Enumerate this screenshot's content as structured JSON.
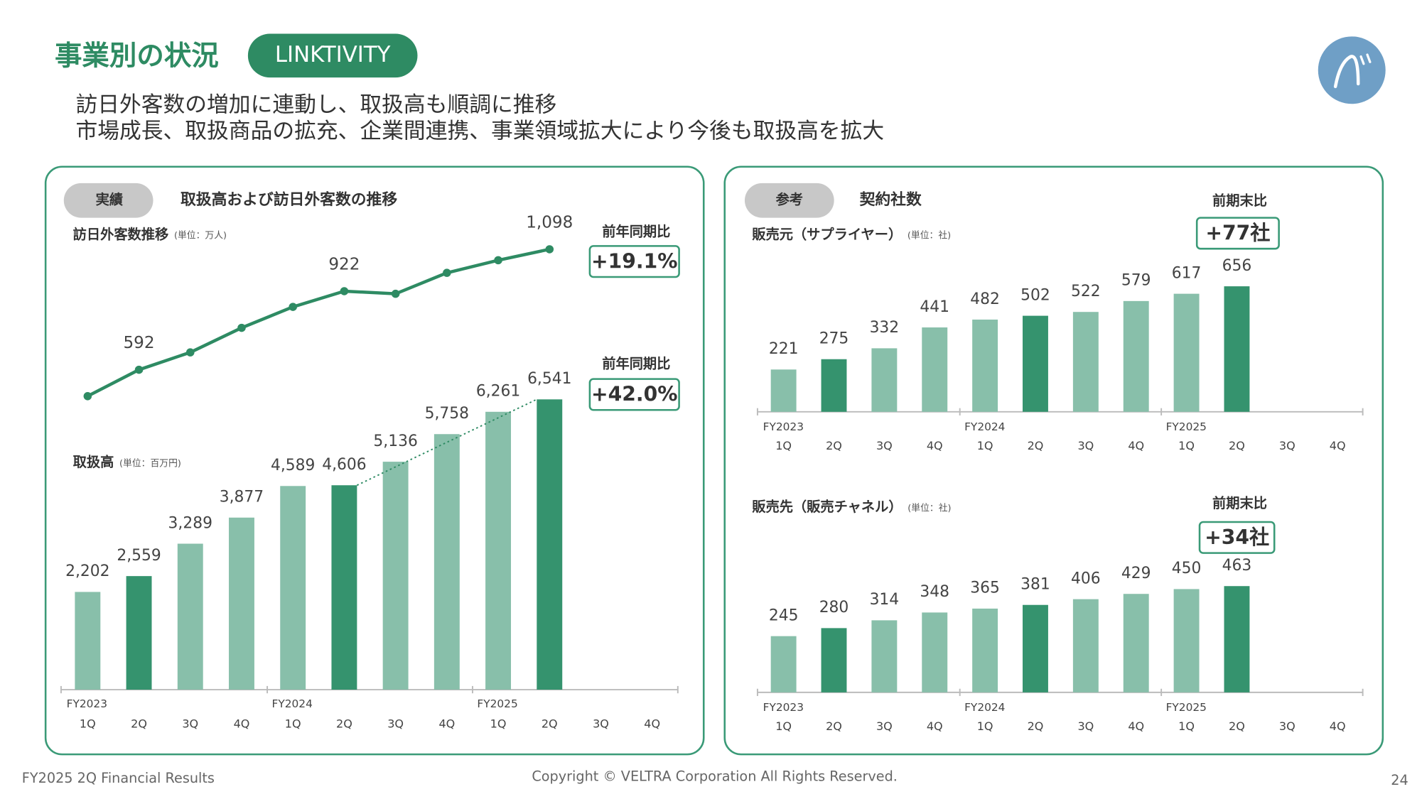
{
  "header": {
    "title": "事業別の状況",
    "tag": "LINKTIVITY",
    "lines": [
      "訪日外客数の増加に連動し、取扱高も順調に推移",
      "市場成長、取扱商品の拡充、企業間連携、事業領域拡大により今後も取扱高を拡大"
    ]
  },
  "panels": [
    {
      "tag": "実績",
      "title": "取扱高および訪日外客数の推移"
    },
    {
      "tag": "参考",
      "title": "契約社数"
    }
  ],
  "chart_data": [
    {
      "type": "line",
      "title": "訪日外客数推移",
      "unit": "(単位：万人)",
      "values": [
        481,
        592,
        665,
        768,
        856,
        922,
        911,
        999,
        1052,
        1098,
        null,
        null
      ],
      "value_labels": [
        null,
        "592",
        null,
        null,
        null,
        "922",
        null,
        null,
        null,
        "1,098",
        null,
        null
      ],
      "color": "#2e8b63",
      "ylim": [
        400,
        1150
      ],
      "comparison": {
        "label": "前年同期比",
        "text": "+19.1%"
      }
    },
    {
      "type": "bar",
      "title": "取扱高",
      "unit": "(単位：百万円)",
      "groups": [
        "FY2023",
        "FY2024",
        "FY2025"
      ],
      "categories": [
        "1Q",
        "2Q",
        "3Q",
        "4Q",
        "1Q",
        "2Q",
        "3Q",
        "4Q",
        "1Q",
        "2Q",
        "3Q",
        "4Q"
      ],
      "values": [
        2202,
        2559,
        3289,
        3877,
        4589,
        4606,
        5136,
        5758,
        6261,
        6541,
        null,
        null
      ],
      "value_labels": [
        "2,202",
        "2,559",
        "3,289",
        "3,877",
        "4,589",
        "4,606",
        "5,136",
        "5,758",
        "6,261",
        "6,541",
        null,
        null
      ],
      "colors": [
        "#88bfaa",
        "#35936e",
        "#88bfaa",
        "#88bfaa",
        "#88bfaa",
        "#35936e",
        "#88bfaa",
        "#88bfaa",
        "#88bfaa",
        "#35936e",
        "#88bfaa",
        "#88bfaa"
      ],
      "ylim": [
        0,
        7000
      ],
      "comparison": {
        "label": "前年同期比",
        "text": "+42.0%"
      }
    },
    {
      "type": "bar",
      "title": "販売元（サプライヤー）",
      "unit": "(単位：社)",
      "groups": [
        "FY2023",
        "FY2024",
        "FY2025"
      ],
      "categories": [
        "1Q",
        "2Q",
        "3Q",
        "4Q",
        "1Q",
        "2Q",
        "3Q",
        "4Q",
        "1Q",
        "2Q",
        "3Q",
        "4Q"
      ],
      "values": [
        221,
        275,
        332,
        441,
        482,
        502,
        522,
        579,
        617,
        656,
        null,
        null
      ],
      "colors": [
        "#88bfaa",
        "#35936e",
        "#88bfaa",
        "#88bfaa",
        "#88bfaa",
        "#35936e",
        "#88bfaa",
        "#88bfaa",
        "#88bfaa",
        "#35936e",
        "#88bfaa",
        "#88bfaa"
      ],
      "ylim": [
        0,
        700
      ],
      "comparison": {
        "label": "前期末比",
        "text": "+77社"
      }
    },
    {
      "type": "bar",
      "title": "販売先（販売チャネル）",
      "unit": "(単位：社)",
      "groups": [
        "FY2023",
        "FY2024",
        "FY2025"
      ],
      "categories": [
        "1Q",
        "2Q",
        "3Q",
        "4Q",
        "1Q",
        "2Q",
        "3Q",
        "4Q",
        "1Q",
        "2Q",
        "3Q",
        "4Q"
      ],
      "values": [
        245,
        280,
        314,
        348,
        365,
        381,
        406,
        429,
        450,
        463,
        null,
        null
      ],
      "colors": [
        "#88bfaa",
        "#35936e",
        "#88bfaa",
        "#88bfaa",
        "#88bfaa",
        "#35936e",
        "#88bfaa",
        "#88bfaa",
        "#88bfaa",
        "#35936e",
        "#88bfaa",
        "#88bfaa"
      ],
      "ylim": [
        0,
        500
      ],
      "comparison": {
        "label": "前期末比",
        "text": "+34社"
      }
    }
  ],
  "footer": {
    "left": "FY2025 2Q Financial Results",
    "center": "Copyright © VELTRA Corporation All Rights Reserved.",
    "page": "24"
  }
}
